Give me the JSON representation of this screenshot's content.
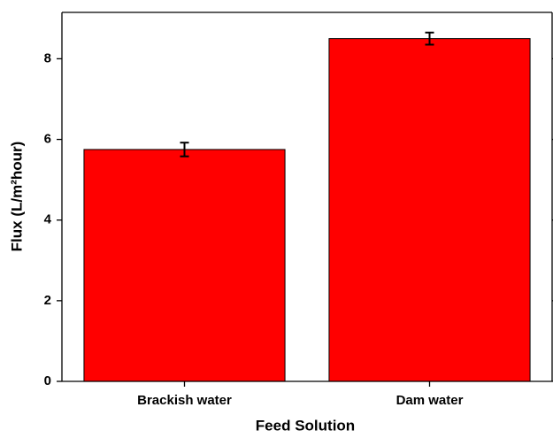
{
  "chart_data": {
    "type": "bar",
    "x_label": "Feed Solution",
    "y_label": "Flux (L/m²hour)",
    "categories": [
      "Brackish water",
      "Dam water"
    ],
    "values": [
      5.75,
      8.5
    ],
    "errors": [
      0.17,
      0.15
    ],
    "color": "#ff0000",
    "ylim": [
      0,
      9.15
    ],
    "yticks": [
      0,
      2,
      4,
      6,
      8
    ],
    "grid": false
  }
}
